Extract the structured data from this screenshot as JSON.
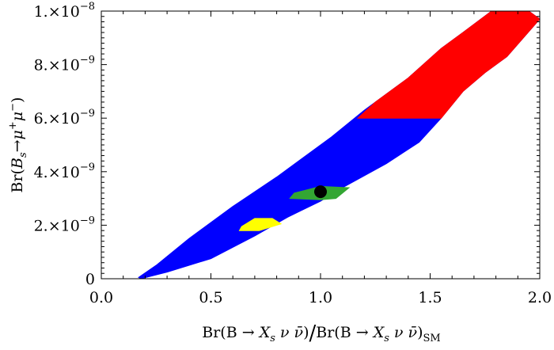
{
  "chart_data": {
    "type": "scatter",
    "title": "",
    "xlabel": "Br(B → X_s ν ν̄) / Br(B → X_s ν ν̄)_SM",
    "ylabel": "Br(B_s → μ⁺ μ⁻)",
    "xlim": [
      0.0,
      2.0
    ],
    "ylim": [
      0,
      1e-08
    ],
    "grid": false,
    "legend": "none",
    "x_ticks": [
      {
        "value": 0.0,
        "label": "0.0"
      },
      {
        "value": 0.5,
        "label": "0.5"
      },
      {
        "value": 1.0,
        "label": "1.0"
      },
      {
        "value": 1.5,
        "label": "1.5"
      },
      {
        "value": 2.0,
        "label": "2.0"
      }
    ],
    "y_ticks": [
      {
        "value": 0,
        "mantissa": "0",
        "exponent": ""
      },
      {
        "value": 2e-09,
        "mantissa": "2.×10",
        "exponent": "−9"
      },
      {
        "value": 4e-09,
        "mantissa": "4.×10",
        "exponent": "−9"
      },
      {
        "value": 6e-09,
        "mantissa": "6.×10",
        "exponent": "−9"
      },
      {
        "value": 8e-09,
        "mantissa": "8.×10",
        "exponent": "−9"
      },
      {
        "value": 1e-08,
        "mantissa": "1.×10",
        "exponent": "−8"
      }
    ],
    "regions": [
      {
        "color": "#0000ff",
        "polygon": [
          [
            0.18,
            0.0
          ],
          [
            0.3,
            2.5e-10
          ],
          [
            0.5,
            7.5e-10
          ],
          [
            0.7,
            1.6e-09
          ],
          [
            0.85,
            2.3e-09
          ],
          [
            1.0,
            2.9e-09
          ],
          [
            1.1,
            3.4e-09
          ],
          [
            1.3,
            4.3e-09
          ],
          [
            1.45,
            5.1e-09
          ],
          [
            1.55,
            6e-09
          ],
          [
            1.65,
            7e-09
          ],
          [
            1.75,
            7.7e-09
          ],
          [
            1.85,
            8.3e-09
          ],
          [
            2.0,
            9.7e-09
          ],
          [
            1.95,
            1e-08
          ],
          [
            1.78,
            1e-08
          ],
          [
            1.65,
            9.2e-09
          ],
          [
            1.55,
            8.6e-09
          ],
          [
            1.4,
            7.5e-09
          ],
          [
            1.2,
            6.3e-09
          ],
          [
            1.05,
            5.3e-09
          ],
          [
            0.8,
            3.8e-09
          ],
          [
            0.6,
            2.7e-09
          ],
          [
            0.4,
            1.5e-09
          ],
          [
            0.25,
            5e-10
          ],
          [
            0.17,
            5e-11
          ]
        ]
      },
      {
        "color": "#ff0000",
        "polygon": [
          [
            1.17,
            6e-09
          ],
          [
            1.55,
            6e-09
          ],
          [
            1.65,
            7e-09
          ],
          [
            1.75,
            7.7e-09
          ],
          [
            1.85,
            8.3e-09
          ],
          [
            2.0,
            9.7e-09
          ],
          [
            1.95,
            1e-08
          ],
          [
            1.78,
            1e-08
          ],
          [
            1.65,
            9.2e-09
          ],
          [
            1.55,
            8.6e-09
          ],
          [
            1.4,
            7.5e-09
          ],
          [
            1.25,
            6.6e-09
          ]
        ]
      },
      {
        "color": "#33a633",
        "polygon": [
          [
            0.86,
            3e-09
          ],
          [
            1.0,
            2.95e-09
          ],
          [
            1.07,
            3e-09
          ],
          [
            1.13,
            3.4e-09
          ],
          [
            1.0,
            3.45e-09
          ],
          [
            0.88,
            3.2e-09
          ]
        ]
      },
      {
        "color": "#ffff00",
        "polygon": [
          [
            0.63,
            1.8e-09
          ],
          [
            0.72,
            1.8e-09
          ],
          [
            0.82,
            2.05e-09
          ],
          [
            0.78,
            2.25e-09
          ],
          [
            0.7,
            2.25e-09
          ],
          [
            0.64,
            1.95e-09
          ]
        ]
      }
    ],
    "points": [
      {
        "x": 1.0,
        "y": 3.25e-09,
        "color": "#000000",
        "marker": "large-dot"
      }
    ]
  }
}
